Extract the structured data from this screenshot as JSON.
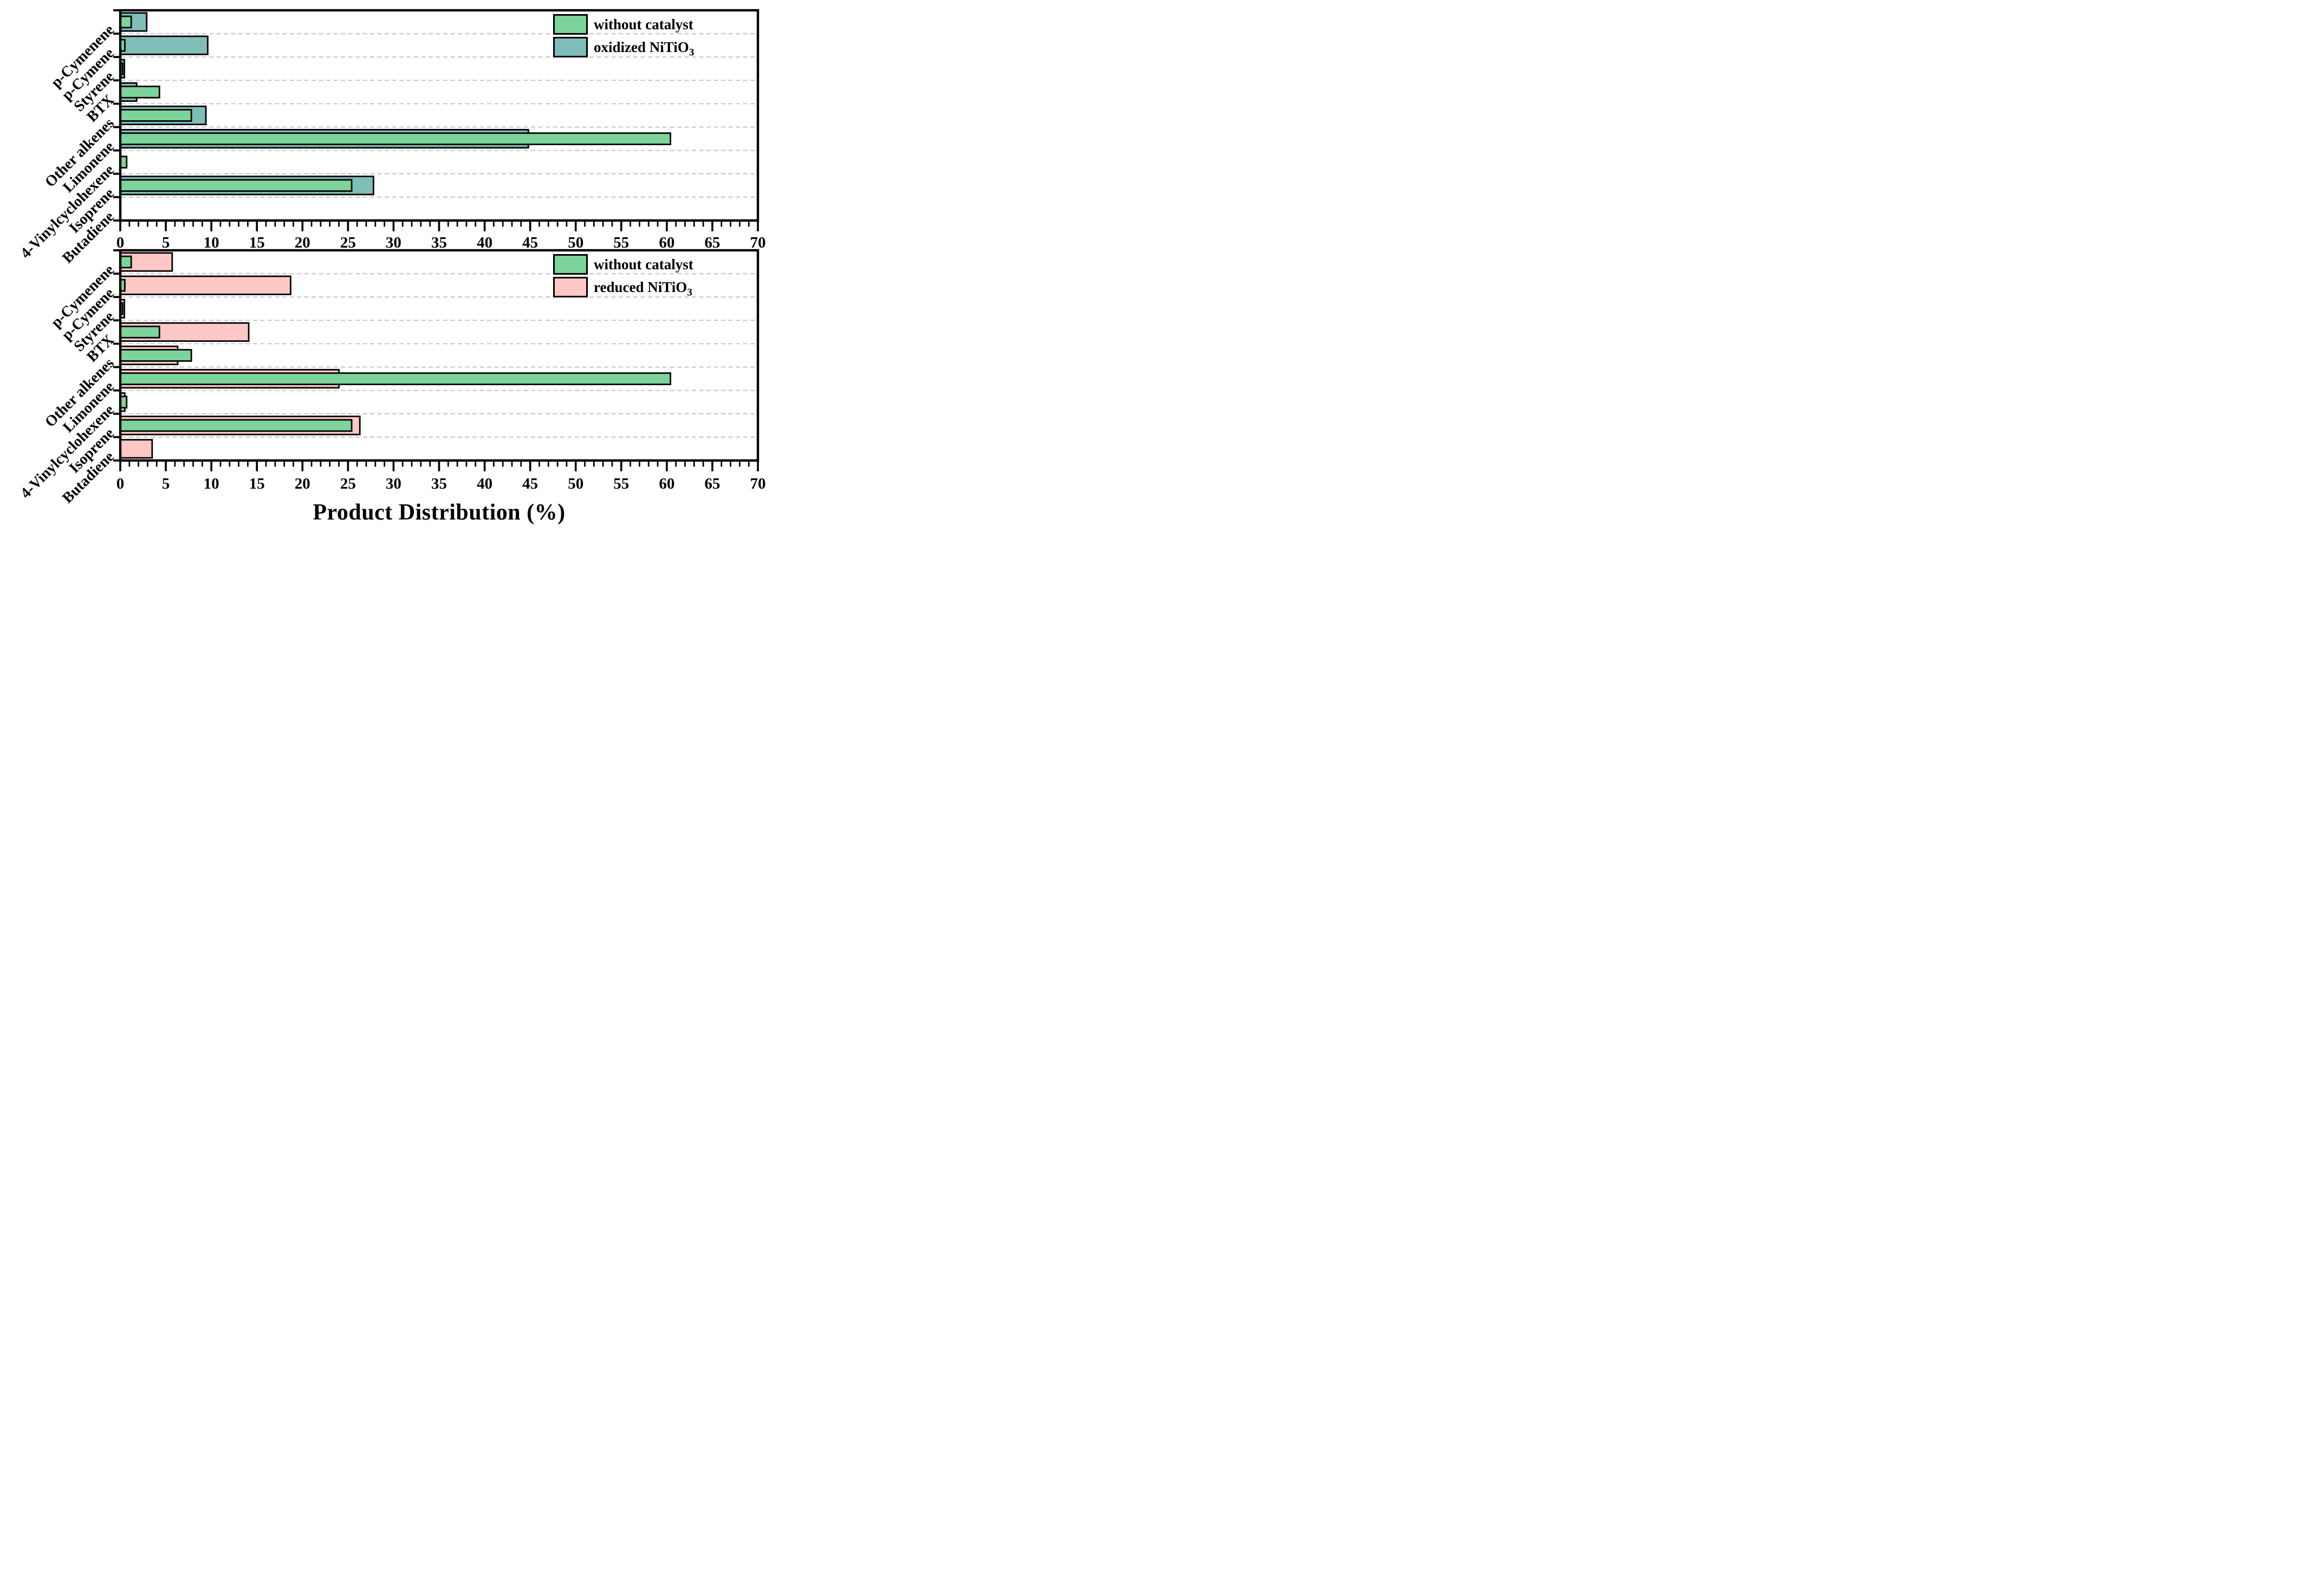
{
  "figure": {
    "xlabel": "Product Distribution (%)",
    "background": "#ffffff",
    "text_color": "#000000",
    "grid_color": "#c8c8c8",
    "bar_edge_color": "#000000"
  },
  "chart_data": [
    {
      "type": "bar",
      "orientation": "horizontal",
      "panel": "top",
      "categories": [
        "p-Cymenene",
        "p-Cymene",
        "Styrene",
        "BTX",
        "Other alkenes",
        "Limonene",
        "4-Vinylcyclohexene",
        "Isoprene",
        "Butadiene"
      ],
      "series": [
        {
          "name": "oxidized NiTiO3",
          "color": "#7fbdb9",
          "values": [
            2.9,
            9.6,
            0.45,
            1.8,
            9.4,
            44.8,
            0,
            27.8,
            0
          ]
        },
        {
          "name": "without catalyst",
          "color": "#7cd49a",
          "values": [
            1.2,
            0.5,
            0.25,
            4.3,
            7.8,
            60.4,
            0.7,
            25.4,
            0
          ]
        }
      ],
      "xlabel": "",
      "xlim": [
        0,
        70
      ],
      "x_major_tick": 5,
      "x_minor_tick": 1,
      "x_tick_labels": [
        "0",
        "5",
        "10",
        "15",
        "20",
        "25",
        "30",
        "35",
        "40",
        "45",
        "50",
        "55",
        "60",
        "65",
        "70"
      ],
      "grid": "dashed horizontal lines at category boundaries",
      "legend_position": "upper right",
      "legend": [
        {
          "label": "without catalyst",
          "sub": "",
          "color": "#7cd49a"
        },
        {
          "label": "oxidized NiTiO",
          "sub": "3",
          "color": "#7fbdb9"
        }
      ]
    },
    {
      "type": "bar",
      "orientation": "horizontal",
      "panel": "bottom",
      "categories": [
        "p-Cymenene",
        "p-Cymene",
        "Styrene",
        "BTX",
        "Other alkenes",
        "Limonene",
        "4-Vinylcyclohexene",
        "Isoprene",
        "Butadiene"
      ],
      "series": [
        {
          "name": "reduced NiTiO3",
          "color": "#fdc7c5",
          "values": [
            5.7,
            18.7,
            0.45,
            14.1,
            6.3,
            24.0,
            0.5,
            26.3,
            3.5
          ]
        },
        {
          "name": "without catalyst",
          "color": "#7cd49a",
          "values": [
            1.2,
            0.5,
            0.25,
            4.3,
            7.8,
            60.4,
            0.7,
            25.4,
            0
          ]
        }
      ],
      "xlabel": "Product Distribution (%)",
      "xlim": [
        0,
        70
      ],
      "x_major_tick": 5,
      "x_minor_tick": 1,
      "x_tick_labels": [
        "0",
        "5",
        "10",
        "15",
        "20",
        "25",
        "30",
        "35",
        "40",
        "45",
        "50",
        "55",
        "60",
        "65",
        "70"
      ],
      "grid": "dashed horizontal lines at category boundaries",
      "legend_position": "upper right",
      "legend": [
        {
          "label": "without catalyst",
          "sub": "",
          "color": "#7cd49a"
        },
        {
          "label": "reduced NiTiO",
          "sub": "3",
          "color": "#fdc7c5"
        }
      ]
    }
  ]
}
